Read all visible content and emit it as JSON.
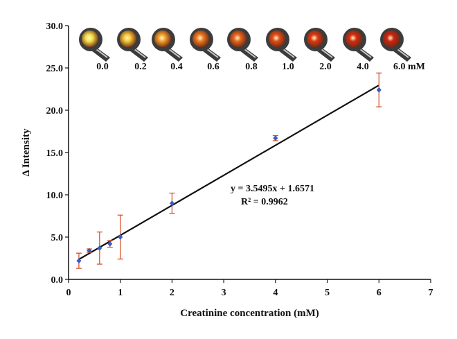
{
  "chart_data": {
    "type": "scatter",
    "title": "",
    "xlabel": "Creatinine concentration (mM)",
    "ylabel": "Δ Intensity",
    "xlim": [
      0,
      7
    ],
    "ylim": [
      0,
      30
    ],
    "x_ticks": [
      "0",
      "1",
      "2",
      "3",
      "4",
      "5",
      "6",
      "7"
    ],
    "y_ticks": [
      "0.0",
      "5.0",
      "10.0",
      "15.0",
      "20.0",
      "25.0",
      "30.0"
    ],
    "grid": false,
    "legend": "none",
    "series": [
      {
        "x": [
          0.2,
          0.4,
          0.6,
          0.8,
          1.0,
          2.0,
          4.0,
          6.0
        ],
        "y": [
          2.2,
          3.4,
          3.7,
          4.2,
          5.0,
          9.0,
          16.7,
          22.4
        ],
        "error": [
          0.9,
          0.2,
          1.9,
          0.4,
          2.6,
          1.2,
          0.3,
          2.0
        ],
        "marker_color": "#3a5cc4",
        "error_color": "#d9532c"
      }
    ],
    "fit": {
      "slope": 3.5495,
      "intercept": 1.6571,
      "x_range": [
        0.2,
        6.0
      ],
      "color": "#111111"
    },
    "annotations": {
      "equation": "y = 3.5495x + 1.6571",
      "r_squared": "R² = 0.9962"
    },
    "inset": {
      "labels": [
        "0.0",
        "0.2",
        "0.4",
        "0.6",
        "0.8",
        "1.0",
        "2.0",
        "4.0",
        "6.0 mM"
      ],
      "spot_colors": [
        "#f5e24a",
        "#f4c837",
        "#f2a12d",
        "#ee7a22",
        "#e9651d",
        "#e24d17",
        "#dc3a13",
        "#d52d10",
        "#cf2410"
      ],
      "icon": "paper-sensor-spot-icon"
    },
    "axis_color": "#111111"
  }
}
